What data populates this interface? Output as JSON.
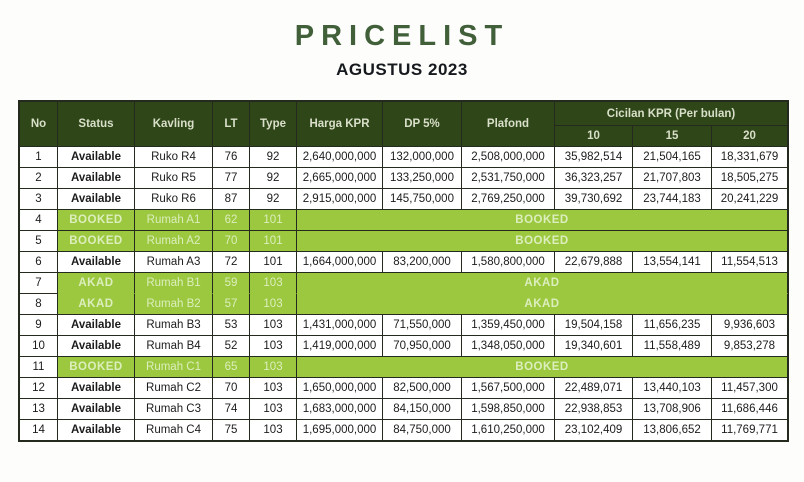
{
  "page": {
    "title": "PRICELIST",
    "subtitle": "AGUSTUS 2023"
  },
  "colors": {
    "title_green": "#41603a",
    "header_bg": "#2e4618",
    "header_text": "#d9dfc9",
    "booked_row_bg": "#9cc83f",
    "booked_row_text": "#dceebd",
    "border": "#242a1d",
    "available_text": "#1c1c1c"
  },
  "table": {
    "headers": [
      "No",
      "Status",
      "Kavling",
      "LT",
      "Type",
      "Harga KPR",
      "DP 5%",
      "Plafond"
    ],
    "group_header": "Cicilan KPR (Per bulan)",
    "sub_headers": [
      "10",
      "15",
      "20"
    ],
    "rows": [
      {
        "no": "1",
        "state": "available",
        "status": "Available",
        "kavling": "Ruko R4",
        "lt": "76",
        "type": "92",
        "harga_kpr": "2,640,000,000",
        "dp": "132,000,000",
        "plafond": "2,508,000,000",
        "cicilan_10": "35,982,514",
        "cicilan_15": "21,504,165",
        "cicilan_20": "18,331,679"
      },
      {
        "no": "2",
        "state": "available",
        "status": "Available",
        "kavling": "Ruko R5",
        "lt": "77",
        "type": "92",
        "harga_kpr": "2,665,000,000",
        "dp": "133,250,000",
        "plafond": "2,531,750,000",
        "cicilan_10": "36,323,257",
        "cicilan_15": "21,707,803",
        "cicilan_20": "18,505,275"
      },
      {
        "no": "3",
        "state": "available",
        "status": "Available",
        "kavling": "Ruko R6",
        "lt": "87",
        "type": "92",
        "harga_kpr": "2,915,000,000",
        "dp": "145,750,000",
        "plafond": "2,769,250,000",
        "cicilan_10": "39,730,692",
        "cicilan_15": "23,744,183",
        "cicilan_20": "20,241,229"
      },
      {
        "no": "4",
        "state": "booked",
        "status": "BOOKED",
        "kavling": "Rumah A1",
        "lt": "62",
        "type": "101",
        "merged_label": "BOOKED"
      },
      {
        "no": "5",
        "state": "booked",
        "status": "BOOKED",
        "kavling": "Rumah A2",
        "lt": "70",
        "type": "101",
        "merged_label": "BOOKED"
      },
      {
        "no": "6",
        "state": "available",
        "status": "Available",
        "kavling": "Rumah A3",
        "lt": "72",
        "type": "101",
        "harga_kpr": "1,664,000,000",
        "dp": "83,200,000",
        "plafond": "1,580,800,000",
        "cicilan_10": "22,679,888",
        "cicilan_15": "13,554,141",
        "cicilan_20": "11,554,513"
      },
      {
        "no": "7",
        "state": "akad",
        "status": "AKAD",
        "kavling": "Rumah B1",
        "lt": "59",
        "type": "103",
        "merged_label": "AKAD"
      },
      {
        "no": "8",
        "state": "akad",
        "status": "AKAD",
        "kavling": "Rumah B2",
        "lt": "57",
        "type": "103",
        "merged_label": "AKAD"
      },
      {
        "no": "9",
        "state": "available",
        "status": "Available",
        "kavling": "Rumah B3",
        "lt": "53",
        "type": "103",
        "harga_kpr": "1,431,000,000",
        "dp": "71,550,000",
        "plafond": "1,359,450,000",
        "cicilan_10": "19,504,158",
        "cicilan_15": "11,656,235",
        "cicilan_20": "9,936,603"
      },
      {
        "no": "10",
        "state": "available",
        "status": "Available",
        "kavling": "Rumah B4",
        "lt": "52",
        "type": "103",
        "harga_kpr": "1,419,000,000",
        "dp": "70,950,000",
        "plafond": "1,348,050,000",
        "cicilan_10": "19,340,601",
        "cicilan_15": "11,558,489",
        "cicilan_20": "9,853,278"
      },
      {
        "no": "11",
        "state": "booked",
        "status": "BOOKED",
        "kavling": "Rumah C1",
        "lt": "65",
        "type": "103",
        "merged_label": "BOOKED"
      },
      {
        "no": "12",
        "state": "available",
        "status": "Available",
        "kavling": "Rumah C2",
        "lt": "70",
        "type": "103",
        "harga_kpr": "1,650,000,000",
        "dp": "82,500,000",
        "plafond": "1,567,500,000",
        "cicilan_10": "22,489,071",
        "cicilan_15": "13,440,103",
        "cicilan_20": "11,457,300"
      },
      {
        "no": "13",
        "state": "available",
        "status": "Available",
        "kavling": "Rumah C3",
        "lt": "74",
        "type": "103",
        "harga_kpr": "1,683,000,000",
        "dp": "84,150,000",
        "plafond": "1,598,850,000",
        "cicilan_10": "22,938,853",
        "cicilan_15": "13,708,906",
        "cicilan_20": "11,686,446"
      },
      {
        "no": "14",
        "state": "available",
        "status": "Available",
        "kavling": "Rumah C4",
        "lt": "75",
        "type": "103",
        "harga_kpr": "1,695,000,000",
        "dp": "84,750,000",
        "plafond": "1,610,250,000",
        "cicilan_10": "23,102,409",
        "cicilan_15": "13,806,652",
        "cicilan_20": "11,769,771"
      }
    ]
  }
}
